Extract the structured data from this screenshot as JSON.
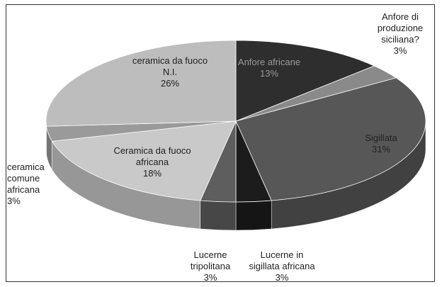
{
  "chart_data": {
    "type": "pie3d",
    "categories": [
      "Anfore africane",
      "Anfore di produzione siciliana?",
      "Sigillata",
      "Lucerne in sigillata africana",
      "Lucerne tripolitana",
      "Ceramica da fuoco africana",
      "ceramica comune africana",
      "ceramica da fuoco N.I."
    ],
    "values": [
      13,
      3,
      31,
      3,
      3,
      18,
      3,
      26
    ],
    "value_labels": [
      "13%",
      "3%",
      "31%",
      "3%",
      "3%",
      "18%",
      "3%",
      "26%"
    ],
    "colors": [
      "#2e2e2e",
      "#8a8a8a",
      "#575757",
      "#1c1c1c",
      "#5e5e5e",
      "#c9c9c9",
      "#9a9a9a",
      "#bdbdbd"
    ]
  }
}
